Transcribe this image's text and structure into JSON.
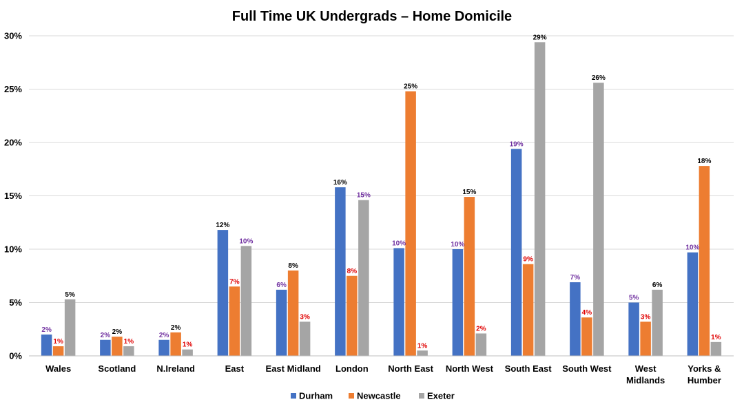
{
  "chart_data": {
    "type": "bar",
    "title": "Full Time UK Undergrads – Home Domicile",
    "xlabel": "",
    "ylabel": "",
    "ylim": [
      0,
      30
    ],
    "y_ticks": [
      "0%",
      "5%",
      "10%",
      "15%",
      "20%",
      "25%",
      "30%"
    ],
    "grid": true,
    "legend_position": "bottom",
    "categories": [
      [
        "Wales"
      ],
      [
        "Scotland"
      ],
      [
        "N.Ireland"
      ],
      [
        "East"
      ],
      [
        "East Midland"
      ],
      [
        "London"
      ],
      [
        "North East"
      ],
      [
        "North West"
      ],
      [
        "South East"
      ],
      [
        "South West"
      ],
      [
        "West",
        "Midlands"
      ],
      [
        "Yorks &",
        "Humber"
      ]
    ],
    "series": [
      {
        "name": "Durham",
        "color": "#4472C4",
        "values": [
          2.0,
          1.5,
          1.5,
          11.8,
          6.2,
          15.8,
          10.1,
          10.0,
          19.4,
          6.9,
          5.0,
          9.7
        ],
        "labels": [
          "2%",
          "2%",
          "2%",
          "12%",
          "6%",
          "16%",
          "10%",
          "10%",
          "19%",
          "7%",
          "5%",
          "10%"
        ]
      },
      {
        "name": "Newcastle",
        "color": "#ED7D31",
        "values": [
          0.9,
          1.8,
          2.2,
          6.5,
          8.0,
          7.5,
          24.8,
          14.9,
          8.6,
          3.6,
          3.2,
          17.8
        ],
        "labels": [
          "1%",
          "2%",
          "2%",
          "7%",
          "8%",
          "8%",
          "25%",
          "15%",
          "9%",
          "4%",
          "3%",
          "18%"
        ]
      },
      {
        "name": "Exeter",
        "color": "#A5A5A5",
        "values": [
          5.3,
          0.9,
          0.6,
          10.3,
          3.2,
          14.6,
          0.5,
          2.1,
          29.4,
          25.6,
          6.2,
          1.3
        ],
        "labels": [
          "5%",
          "1%",
          "1%",
          "10%",
          "3%",
          "15%",
          "1%",
          "2%",
          "29%",
          "26%",
          "6%",
          "1%"
        ]
      }
    ],
    "data_label_colors": {
      "highest": "#000000",
      "middle": "#7030A0",
      "lowest": "#E00000"
    }
  }
}
